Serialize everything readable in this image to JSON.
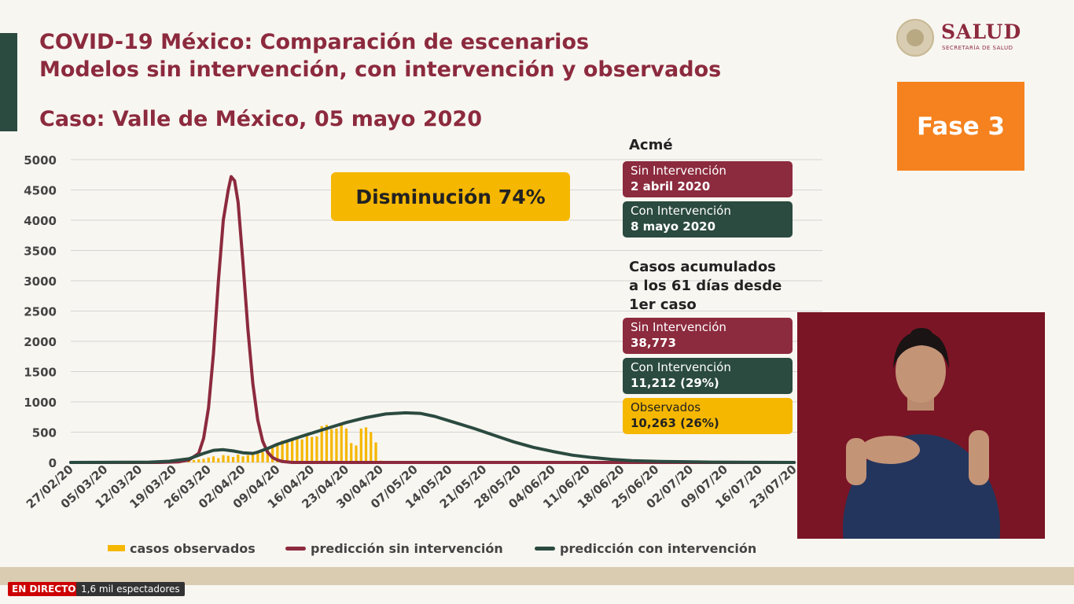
{
  "header": {
    "title_line1": "COVID-19 México: Comparación de escenarios",
    "title_line2": "Modelos sin intervención, con intervención y observados",
    "case_line": "Caso: Valle de México, 05 mayo 2020"
  },
  "logo": {
    "name": "SALUD",
    "subtitle": "SECRETARÍA DE SALUD"
  },
  "phase_badge": "Fase 3",
  "callout": "Disminución 74%",
  "side_panel": {
    "peak_heading": "Acmé",
    "peak_without": {
      "label": "Sin Intervención",
      "value": "2 abril 2020"
    },
    "peak_with": {
      "label": "Con Intervención",
      "value": "8 mayo 2020"
    },
    "cumulative_heading": [
      "Casos acumulados",
      "a los 61 días desde",
      "1er caso"
    ],
    "cum_without": {
      "label": "Sin Intervención",
      "value": "38,773"
    },
    "cum_with": {
      "label": "Con Intervención",
      "value": "11,212 (29%)"
    },
    "cum_observed": {
      "label": "Observados",
      "value": "10,263 (26%)"
    }
  },
  "colors": {
    "red": "#8c2a3e",
    "green": "#2b4a40",
    "yellow": "#f5b700",
    "orange": "#f5821f"
  },
  "chart_data": {
    "type": "line",
    "y_ticks": [
      "5000",
      "4500",
      "4000",
      "3500",
      "3000",
      "2500",
      "2000",
      "1500",
      "1000",
      "500",
      "0"
    ],
    "ylim": [
      0,
      5000
    ],
    "x_tick_labels": [
      "27/02/20",
      "05/03/20",
      "12/03/20",
      "19/03/20",
      "26/03/20",
      "02/04/20",
      "09/04/20",
      "16/04/20",
      "23/04/20",
      "30/04/20",
      "07/05/20",
      "14/05/20",
      "21/05/20",
      "28/05/20",
      "04/06/20",
      "11/06/20",
      "18/06/20",
      "25/06/20",
      "02/07/20",
      "09/07/20",
      "16/07/20",
      "23/07/20"
    ],
    "x_range_days": [
      0,
      147
    ],
    "legend": [
      {
        "name": "casos observados",
        "kind": "bar",
        "color": "#f5b700"
      },
      {
        "name": "predicción sin intervención",
        "kind": "line",
        "color": "#8c2a3e"
      },
      {
        "name": "predicción con intervención",
        "kind": "line",
        "color": "#2b4a40"
      }
    ],
    "series": [
      {
        "name": "predicción sin intervención",
        "color": "#8c2a3e",
        "points": [
          [
            0,
            0
          ],
          [
            18,
            0
          ],
          [
            22,
            10
          ],
          [
            24,
            40
          ],
          [
            26,
            150
          ],
          [
            27,
            400
          ],
          [
            28,
            900
          ],
          [
            29,
            1800
          ],
          [
            30,
            3000
          ],
          [
            31,
            4000
          ],
          [
            32,
            4500
          ],
          [
            32.6,
            4720
          ],
          [
            33.3,
            4650
          ],
          [
            34,
            4300
          ],
          [
            35,
            3300
          ],
          [
            36,
            2200
          ],
          [
            37,
            1300
          ],
          [
            38,
            700
          ],
          [
            39,
            350
          ],
          [
            40,
            170
          ],
          [
            41,
            80
          ],
          [
            42,
            40
          ],
          [
            43,
            15
          ],
          [
            45,
            0
          ],
          [
            147,
            0
          ]
        ]
      },
      {
        "name": "predicción con intervención",
        "color": "#2b4a40",
        "points": [
          [
            0,
            0
          ],
          [
            16,
            5
          ],
          [
            20,
            20
          ],
          [
            24,
            60
          ],
          [
            27,
            150
          ],
          [
            29,
            200
          ],
          [
            31,
            210
          ],
          [
            33,
            190
          ],
          [
            35,
            160
          ],
          [
            37,
            150
          ],
          [
            38,
            170
          ],
          [
            40,
            230
          ],
          [
            42,
            300
          ],
          [
            45,
            380
          ],
          [
            48,
            460
          ],
          [
            52,
            560
          ],
          [
            56,
            660
          ],
          [
            60,
            740
          ],
          [
            64,
            800
          ],
          [
            68,
            820
          ],
          [
            71,
            810
          ],
          [
            74,
            760
          ],
          [
            78,
            660
          ],
          [
            82,
            560
          ],
          [
            86,
            450
          ],
          [
            90,
            340
          ],
          [
            94,
            250
          ],
          [
            98,
            180
          ],
          [
            102,
            120
          ],
          [
            106,
            80
          ],
          [
            110,
            50
          ],
          [
            114,
            30
          ],
          [
            120,
            15
          ],
          [
            130,
            5
          ],
          [
            147,
            0
          ]
        ]
      },
      {
        "name": "casos observados",
        "color": "#f5b700",
        "kind": "bar",
        "points": [
          [
            17,
            5
          ],
          [
            18,
            5
          ],
          [
            19,
            8
          ],
          [
            20,
            10
          ],
          [
            21,
            12
          ],
          [
            22,
            15
          ],
          [
            23,
            20
          ],
          [
            24,
            30
          ],
          [
            25,
            40
          ],
          [
            26,
            50
          ],
          [
            27,
            60
          ],
          [
            28,
            80
          ],
          [
            29,
            100
          ],
          [
            30,
            70
          ],
          [
            31,
            120
          ],
          [
            32,
            110
          ],
          [
            33,
            90
          ],
          [
            34,
            130
          ],
          [
            35,
            100
          ],
          [
            36,
            120
          ],
          [
            37,
            140
          ],
          [
            38,
            150
          ],
          [
            39,
            170
          ],
          [
            40,
            230
          ],
          [
            41,
            260
          ],
          [
            42,
            300
          ],
          [
            43,
            360
          ],
          [
            44,
            330
          ],
          [
            45,
            380
          ],
          [
            46,
            420
          ],
          [
            47,
            380
          ],
          [
            48,
            450
          ],
          [
            49,
            420
          ],
          [
            50,
            430
          ],
          [
            51,
            600
          ],
          [
            52,
            620
          ],
          [
            53,
            550
          ],
          [
            54,
            560
          ],
          [
            55,
            650
          ],
          [
            56,
            560
          ],
          [
            57,
            320
          ],
          [
            58,
            280
          ],
          [
            59,
            560
          ],
          [
            60,
            580
          ],
          [
            61,
            500
          ],
          [
            62,
            330
          ],
          [
            63,
            30
          ]
        ]
      }
    ]
  },
  "footer": {
    "live_label": "EN DIRECTO",
    "viewers": "1,6 mil espectadores"
  }
}
